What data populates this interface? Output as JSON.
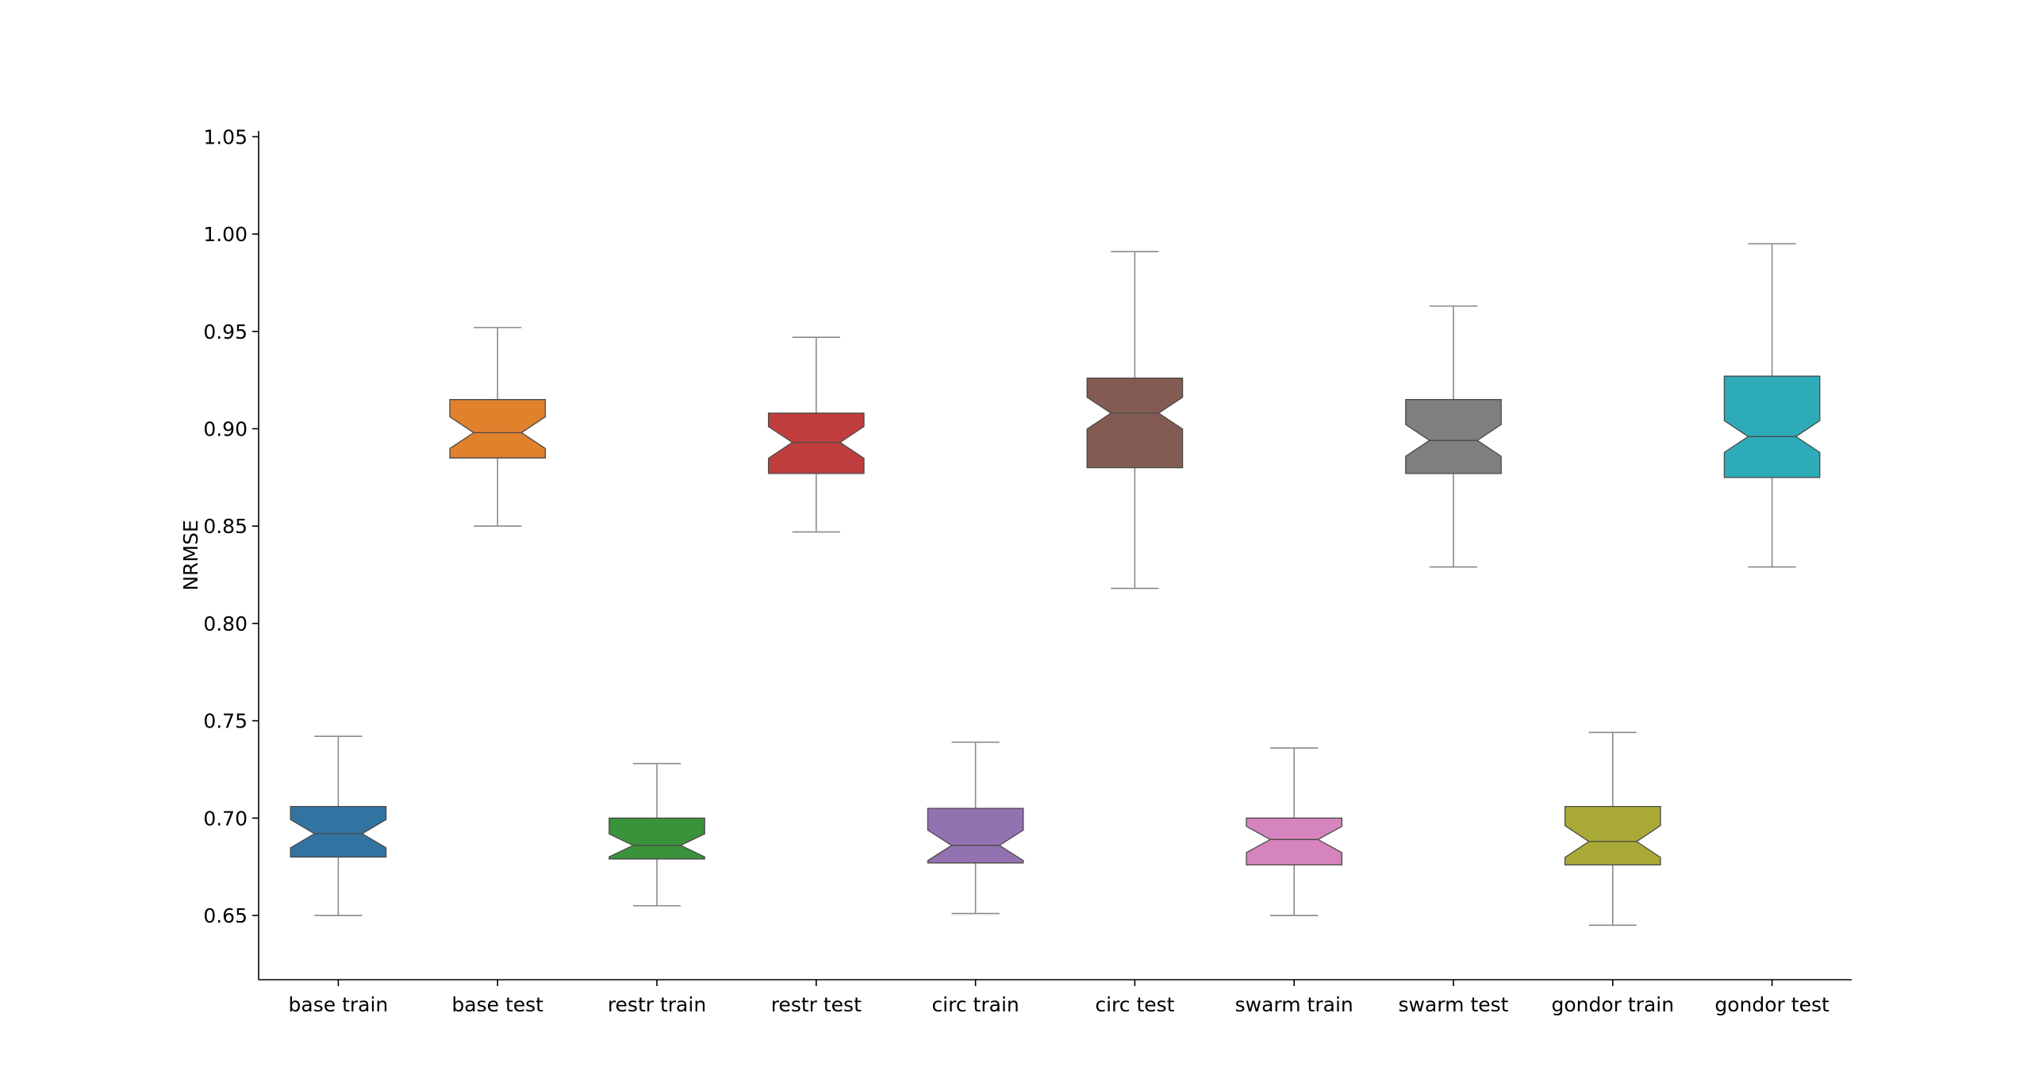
{
  "chart_data": {
    "type": "boxplot",
    "ylabel": "NRMSE",
    "xlabel": "",
    "title": "",
    "ylim": [
      0.617,
      1.053
    ],
    "yticks": [
      "0.65",
      "0.70",
      "0.75",
      "0.80",
      "0.85",
      "0.90",
      "0.95",
      "1.00",
      "1.05"
    ],
    "notched": true,
    "grid": false,
    "categories": [
      "base train",
      "base test",
      "restr train",
      "restr test",
      "circ train",
      "circ test",
      "swarm train",
      "swarm test",
      "gondor train",
      "gondor test"
    ],
    "boxes": [
      {
        "label": "base train",
        "color": "#3274a1",
        "whislo": 0.65,
        "q1": 0.68,
        "med": 0.692,
        "q3": 0.706,
        "whishi": 0.742
      },
      {
        "label": "base test",
        "color": "#e1812c",
        "whislo": 0.85,
        "q1": 0.885,
        "med": 0.898,
        "q3": 0.915,
        "whishi": 0.952
      },
      {
        "label": "restr train",
        "color": "#3a923a",
        "whislo": 0.655,
        "q1": 0.679,
        "med": 0.686,
        "q3": 0.7,
        "whishi": 0.728
      },
      {
        "label": "restr test",
        "color": "#c03d3e",
        "whislo": 0.847,
        "q1": 0.877,
        "med": 0.893,
        "q3": 0.908,
        "whishi": 0.947
      },
      {
        "label": "circ train",
        "color": "#9372b2",
        "whislo": 0.651,
        "q1": 0.677,
        "med": 0.686,
        "q3": 0.705,
        "whishi": 0.739
      },
      {
        "label": "circ test",
        "color": "#845b53",
        "whislo": 0.818,
        "q1": 0.88,
        "med": 0.908,
        "q3": 0.926,
        "whishi": 0.991
      },
      {
        "label": "swarm train",
        "color": "#d684bd",
        "whislo": 0.65,
        "q1": 0.676,
        "med": 0.689,
        "q3": 0.7,
        "whishi": 0.736
      },
      {
        "label": "swarm test",
        "color": "#7f7f7f",
        "whislo": 0.829,
        "q1": 0.877,
        "med": 0.894,
        "q3": 0.915,
        "whishi": 0.963
      },
      {
        "label": "gondor train",
        "color": "#a9aa35",
        "whislo": 0.645,
        "q1": 0.676,
        "med": 0.688,
        "q3": 0.706,
        "whishi": 0.744
      },
      {
        "label": "gondor test",
        "color": "#2eabb8",
        "whislo": 0.829,
        "q1": 0.875,
        "med": 0.896,
        "q3": 0.927,
        "whishi": 0.995
      }
    ]
  }
}
